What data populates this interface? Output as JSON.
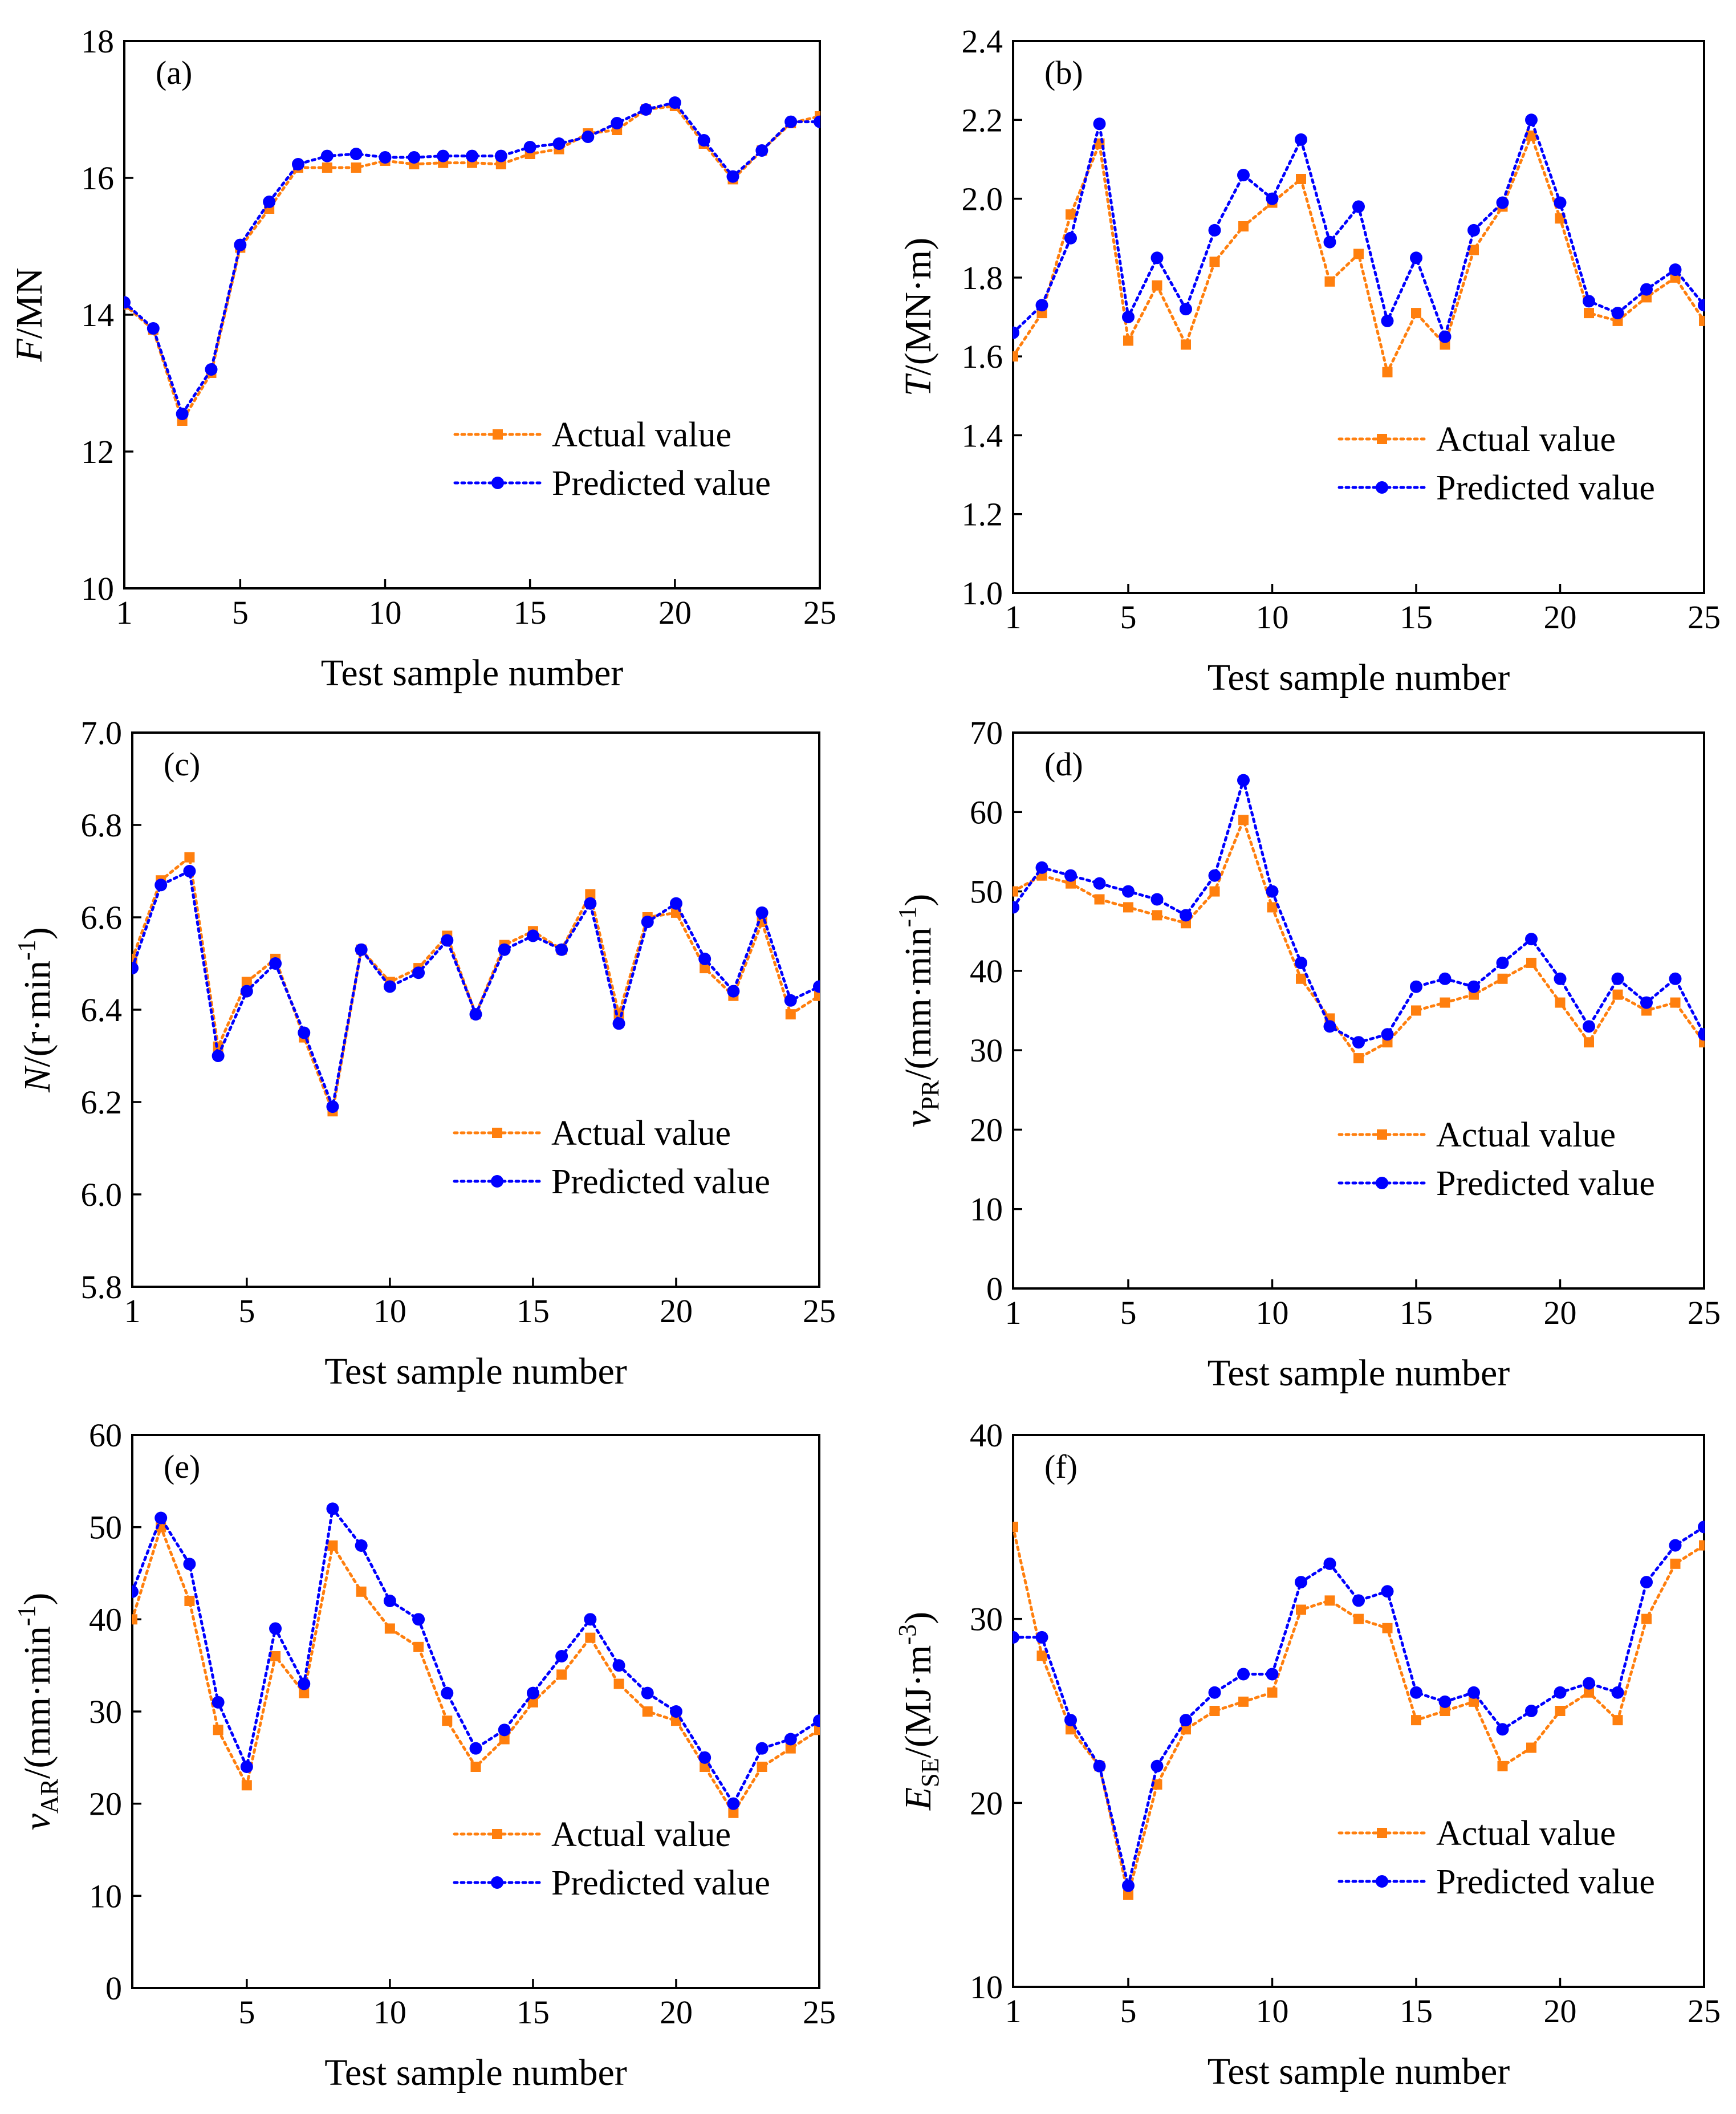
{
  "colors": {
    "actual": "#ff7f0e",
    "predicted": "#0000ff",
    "axis": "#000000"
  },
  "legend": {
    "actual_label": "Actual value",
    "predicted_label": "Predicted value"
  },
  "chart_data": [
    {
      "type": "line",
      "panel_label": "(a)",
      "ylabel": {
        "italic": "F",
        "rest": "/MN"
      },
      "xlabel": "Test sample number",
      "x": [
        1,
        2,
        3,
        4,
        5,
        6,
        7,
        8,
        9,
        10,
        11,
        12,
        13,
        14,
        15,
        16,
        17,
        18,
        19,
        20,
        21,
        22,
        23,
        24,
        25
      ],
      "xlim": [
        1,
        25
      ],
      "xticks": [
        1,
        5,
        10,
        15,
        20,
        25
      ],
      "ylim": [
        10,
        18
      ],
      "yticks": [
        10,
        12,
        14,
        16,
        18
      ],
      "ytick_labels": [
        "10",
        "12",
        "14",
        "16",
        "18"
      ],
      "legend_position": "lower-right",
      "series": [
        {
          "name": "Actual value",
          "marker": "square",
          "values": [
            14.15,
            13.78,
            12.45,
            13.15,
            14.98,
            15.55,
            16.15,
            16.15,
            16.15,
            16.25,
            16.2,
            16.22,
            16.22,
            16.2,
            16.35,
            16.42,
            16.65,
            16.7,
            17.0,
            17.05,
            16.5,
            15.98,
            16.4,
            16.8,
            16.9
          ]
        },
        {
          "name": "Predicted value",
          "marker": "circle",
          "values": [
            14.18,
            13.8,
            12.55,
            13.2,
            15.02,
            15.65,
            16.2,
            16.32,
            16.35,
            16.3,
            16.3,
            16.32,
            16.32,
            16.32,
            16.45,
            16.5,
            16.6,
            16.8,
            17.0,
            17.1,
            16.55,
            16.02,
            16.4,
            16.82,
            16.82
          ]
        }
      ]
    },
    {
      "type": "line",
      "panel_label": "(b)",
      "ylabel": {
        "italic": "T",
        "rest": "/(MN·m)"
      },
      "xlabel": "Test sample number",
      "x": [
        1,
        2,
        3,
        4,
        5,
        6,
        7,
        8,
        9,
        10,
        11,
        12,
        13,
        14,
        15,
        16,
        17,
        18,
        19,
        20,
        21,
        22,
        23,
        24,
        25
      ],
      "xlim": [
        1,
        25
      ],
      "xticks": [
        1,
        5,
        10,
        15,
        20,
        25
      ],
      "ylim": [
        1.0,
        2.4
      ],
      "yticks": [
        1.0,
        1.2,
        1.4,
        1.6,
        1.8,
        2.0,
        2.2,
        2.4
      ],
      "ytick_labels": [
        "1.0",
        "1.2",
        "1.4",
        "1.6",
        "1.8",
        "2.0",
        "2.2",
        "2.4"
      ],
      "legend_position": "lower-right",
      "series": [
        {
          "name": "Actual value",
          "marker": "square",
          "values": [
            1.6,
            1.71,
            1.96,
            2.14,
            1.64,
            1.78,
            1.63,
            1.84,
            1.93,
            1.99,
            2.05,
            1.79,
            1.86,
            1.56,
            1.71,
            1.63,
            1.87,
            1.98,
            2.16,
            1.95,
            1.71,
            1.69,
            1.75,
            1.8,
            1.69
          ]
        },
        {
          "name": "Predicted value",
          "marker": "circle",
          "values": [
            1.66,
            1.73,
            1.9,
            2.19,
            1.7,
            1.85,
            1.72,
            1.92,
            2.06,
            2.0,
            2.15,
            1.89,
            1.98,
            1.69,
            1.85,
            1.65,
            1.92,
            1.99,
            2.2,
            1.99,
            1.74,
            1.71,
            1.77,
            1.82,
            1.73
          ]
        }
      ]
    },
    {
      "type": "line",
      "panel_label": "(c)",
      "ylabel": {
        "italic": "N",
        "rest": "/(r·min",
        "sup": "-1",
        "close": ")"
      },
      "xlabel": "Test sample number",
      "x": [
        1,
        2,
        3,
        4,
        5,
        6,
        7,
        8,
        9,
        10,
        11,
        12,
        13,
        14,
        15,
        16,
        17,
        18,
        19,
        20,
        21,
        22,
        23,
        24,
        25
      ],
      "xlim": [
        1,
        25
      ],
      "xticks": [
        1,
        5,
        10,
        15,
        20,
        25
      ],
      "ylim": [
        5.8,
        7.0
      ],
      "yticks": [
        5.8,
        6.0,
        6.2,
        6.4,
        6.6,
        6.8,
        7.0
      ],
      "ytick_labels": [
        "5.8",
        "6.0",
        "6.2",
        "6.4",
        "6.6",
        "6.8",
        "7.0"
      ],
      "legend_position": "lower-right",
      "series": [
        {
          "name": "Actual value",
          "marker": "square",
          "values": [
            6.51,
            6.68,
            6.73,
            6.32,
            6.46,
            6.51,
            6.34,
            6.18,
            6.53,
            6.46,
            6.49,
            6.56,
            6.39,
            6.54,
            6.57,
            6.53,
            6.65,
            6.39,
            6.6,
            6.61,
            6.49,
            6.43,
            6.59,
            6.39,
            6.43
          ]
        },
        {
          "name": "Predicted value",
          "marker": "circle",
          "values": [
            6.49,
            6.67,
            6.7,
            6.3,
            6.44,
            6.5,
            6.35,
            6.19,
            6.53,
            6.45,
            6.48,
            6.55,
            6.39,
            6.53,
            6.56,
            6.53,
            6.63,
            6.37,
            6.59,
            6.63,
            6.51,
            6.44,
            6.61,
            6.42,
            6.45
          ]
        }
      ]
    },
    {
      "type": "line",
      "panel_label": "(d)",
      "ylabel": {
        "italic": "v",
        "sub": "PR",
        "rest": "/(mm·min",
        "sup": "-1",
        "close": ")"
      },
      "xlabel": "Test sample number",
      "x": [
        1,
        2,
        3,
        4,
        5,
        6,
        7,
        8,
        9,
        10,
        11,
        12,
        13,
        14,
        15,
        16,
        17,
        18,
        19,
        20,
        21,
        22,
        23,
        24,
        25
      ],
      "xlim": [
        1,
        25
      ],
      "xticks": [
        1,
        5,
        10,
        15,
        20,
        25
      ],
      "ylim": [
        0,
        70
      ],
      "yticks": [
        0,
        10,
        20,
        30,
        40,
        50,
        60,
        70
      ],
      "ytick_labels": [
        "0",
        "10",
        "20",
        "30",
        "40",
        "50",
        "60",
        "70"
      ],
      "legend_position": "lower-right",
      "series": [
        {
          "name": "Actual value",
          "marker": "square",
          "values": [
            50,
            52,
            51,
            49,
            48,
            47,
            46,
            50,
            59,
            48,
            39,
            34,
            29,
            31,
            35,
            36,
            37,
            39,
            41,
            36,
            31,
            37,
            35,
            36,
            31
          ]
        },
        {
          "name": "Predicted value",
          "marker": "circle",
          "values": [
            48,
            53,
            52,
            51,
            50,
            49,
            47,
            52,
            64,
            50,
            41,
            33,
            31,
            32,
            38,
            39,
            38,
            41,
            44,
            39,
            33,
            39,
            36,
            39,
            32
          ]
        }
      ]
    },
    {
      "type": "line",
      "panel_label": "(e)",
      "ylabel": {
        "italic": "v",
        "sub": "AR",
        "rest": "/(mm·min",
        "sup": "-1",
        "close": ")"
      },
      "xlabel": "Test sample number",
      "x": [
        1,
        2,
        3,
        4,
        5,
        6,
        7,
        8,
        9,
        10,
        11,
        12,
        13,
        14,
        15,
        16,
        17,
        18,
        19,
        20,
        21,
        22,
        23,
        24,
        25
      ],
      "xlim": [
        1,
        25
      ],
      "xticks": [
        5,
        10,
        15,
        20,
        25
      ],
      "ylim": [
        0,
        60
      ],
      "yticks": [
        0,
        10,
        20,
        30,
        40,
        50,
        60
      ],
      "ytick_labels": [
        "0",
        "10",
        "20",
        "30",
        "40",
        "50",
        "60"
      ],
      "legend_position": "lower-right",
      "series": [
        {
          "name": "Actual value",
          "marker": "square",
          "values": [
            40,
            50,
            42,
            28,
            22,
            36,
            32,
            48,
            43,
            39,
            37,
            29,
            24,
            27,
            31,
            34,
            38,
            33,
            30,
            29,
            24,
            19,
            24,
            26,
            28
          ]
        },
        {
          "name": "Predicted value",
          "marker": "circle",
          "values": [
            43,
            51,
            46,
            31,
            24,
            39,
            33,
            52,
            48,
            42,
            40,
            32,
            26,
            28,
            32,
            36,
            40,
            35,
            32,
            30,
            25,
            20,
            26,
            27,
            29
          ]
        }
      ]
    },
    {
      "type": "line",
      "panel_label": "(f)",
      "ylabel": {
        "italic": "E",
        "sub": "SE",
        "rest": "/(MJ·m",
        "sup": "-3",
        "close": ")"
      },
      "xlabel": "Test sample number",
      "x": [
        1,
        2,
        3,
        4,
        5,
        6,
        7,
        8,
        9,
        10,
        11,
        12,
        13,
        14,
        15,
        16,
        17,
        18,
        19,
        20,
        21,
        22,
        23,
        24,
        25
      ],
      "xlim": [
        1,
        25
      ],
      "xticks": [
        1,
        5,
        10,
        15,
        20,
        25
      ],
      "ylim": [
        10,
        40
      ],
      "yticks": [
        10,
        20,
        30,
        40
      ],
      "ytick_labels": [
        "10",
        "20",
        "30",
        "40"
      ],
      "legend_position": "lower-right",
      "series": [
        {
          "name": "Actual value",
          "marker": "square",
          "values": [
            35,
            28,
            24,
            22,
            15,
            21,
            24,
            25,
            25.5,
            26,
            30.5,
            31,
            30,
            29.5,
            24.5,
            25,
            25.5,
            22,
            23,
            25,
            26,
            24.5,
            30,
            33,
            34
          ]
        },
        {
          "name": "Predicted value",
          "marker": "circle",
          "values": [
            29,
            29,
            24.5,
            22,
            15.5,
            22,
            24.5,
            26,
            27,
            27,
            32,
            33,
            31,
            31.5,
            26,
            25.5,
            26,
            24,
            25,
            26,
            26.5,
            26,
            32,
            34,
            35
          ]
        }
      ]
    }
  ]
}
